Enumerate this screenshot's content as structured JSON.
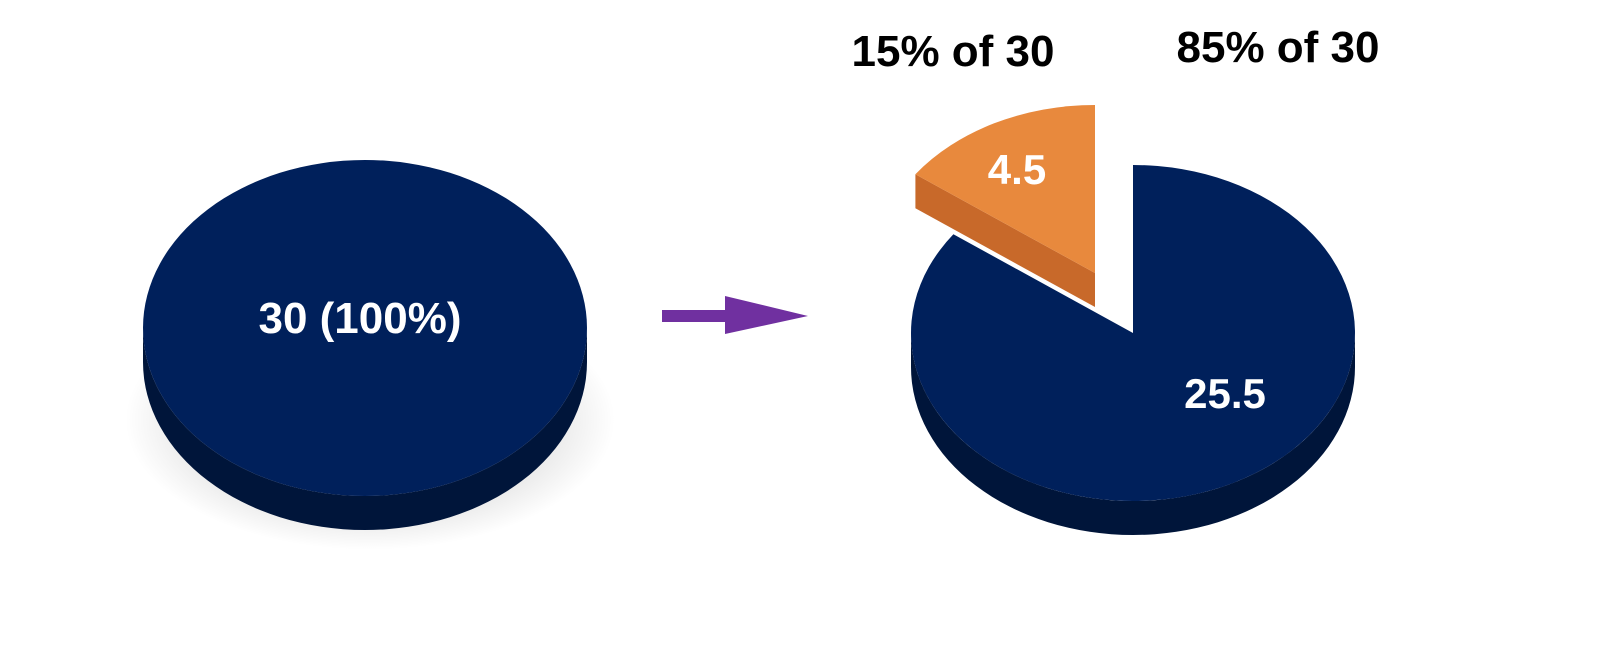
{
  "chart_data": [
    {
      "type": "pie",
      "slices": [
        {
          "label": "30 (100%)",
          "value": 30,
          "percent": 100
        }
      ]
    },
    {
      "type": "pie",
      "slices": [
        {
          "label": "4.5",
          "value": 4.5,
          "percent": 15,
          "annotation": "15% of 30",
          "exploded": true
        },
        {
          "label": "25.5",
          "value": 25.5,
          "percent": 85,
          "annotation": "85% of 30",
          "exploded": false
        }
      ]
    }
  ],
  "colors": {
    "pie_top": "#00205b",
    "pie_side": "#00153a",
    "slice_top": "#e8893d",
    "slice_side": "#c8692a",
    "arrow": "#7030a0",
    "label": "#ffffff"
  }
}
